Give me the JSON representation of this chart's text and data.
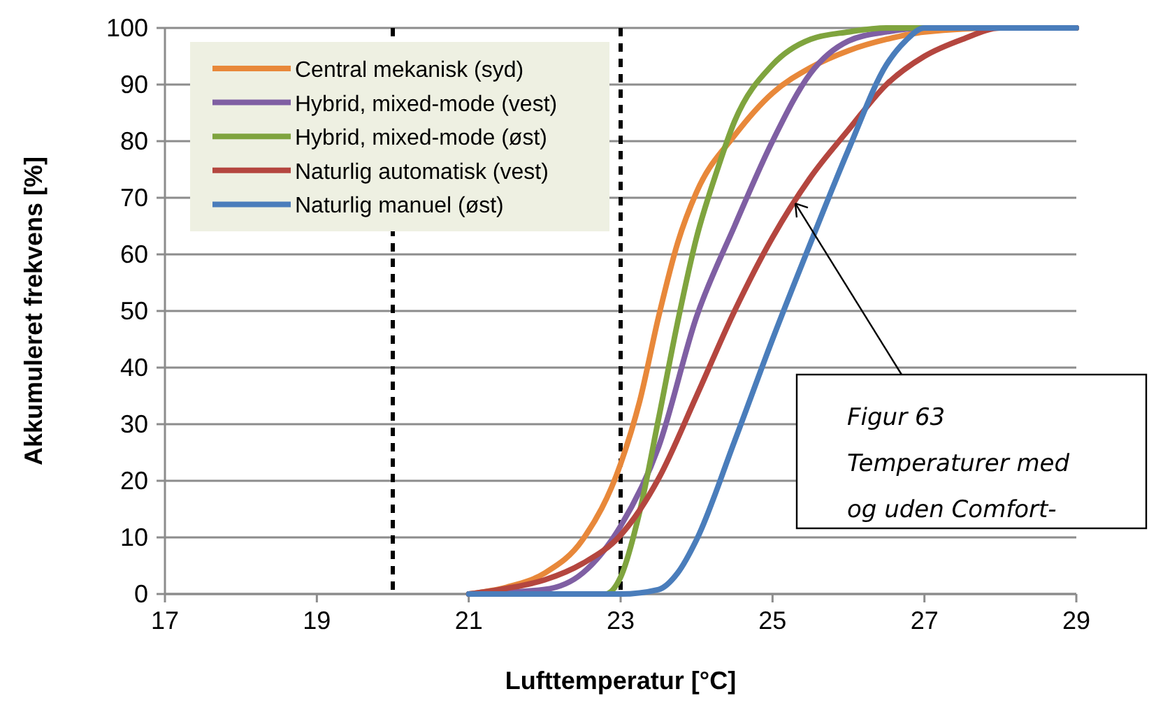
{
  "chart_data": {
    "type": "line",
    "xlabel": "Lufttemperatur [°C]",
    "ylabel": "Akkumuleret frekvens [%]",
    "xlim": [
      17,
      29
    ],
    "xticks": [
      17,
      19,
      21,
      23,
      25,
      27,
      29
    ],
    "ylim": [
      0,
      100
    ],
    "yticks": [
      0,
      10,
      20,
      30,
      40,
      50,
      60,
      70,
      80,
      90,
      100
    ],
    "grid": "y",
    "legend": "top left",
    "marker": "none",
    "line_style": "solid",
    "series": [
      {
        "name": "Central mekanisk (syd)",
        "color": "#e8883a",
        "x": [
          21,
          21.5,
          22,
          22.5,
          23,
          23.25,
          23.5,
          23.75,
          24,
          24.5,
          25,
          25.5,
          26,
          26.5,
          27,
          28,
          29
        ],
        "values": [
          0,
          1.2,
          3.7,
          9.6,
          23,
          34,
          49,
          62,
          71,
          81,
          88.5,
          93,
          96,
          98,
          99.3,
          100,
          100
        ]
      },
      {
        "name": "Hybrid, mixed-mode (vest)",
        "color": "#7f5fa3",
        "x": [
          21,
          22,
          22.5,
          23,
          23.5,
          24,
          24.5,
          25,
          25.5,
          26,
          26.5,
          27,
          29
        ],
        "values": [
          0,
          0.8,
          3.7,
          12,
          26,
          49,
          65,
          80,
          92,
          97.7,
          99.3,
          100,
          100
        ]
      },
      {
        "name": "Hybrid, mixed-mode (øst)",
        "color": "#7fa43e",
        "x": [
          21,
          22.8,
          23,
          23.25,
          23.5,
          23.75,
          24,
          24.25,
          24.5,
          25,
          25.5,
          26,
          26.5,
          29
        ],
        "values": [
          0,
          0,
          3,
          14.5,
          31,
          48,
          63,
          74,
          83.5,
          93.5,
          98,
          99.3,
          100,
          100
        ]
      },
      {
        "name": "Naturlig automatisk (vest)",
        "color": "#b4463f",
        "x": [
          21,
          21.5,
          22,
          22.5,
          23,
          23.5,
          24,
          24.5,
          25,
          25.5,
          26,
          26.5,
          27,
          27.5,
          28,
          29
        ],
        "values": [
          0,
          1,
          2.5,
          5.4,
          10.4,
          20.4,
          35,
          50,
          63,
          73.6,
          82,
          90,
          95,
          98,
          100,
          100
        ]
      },
      {
        "name": "Naturlig manuel (øst)",
        "color": "#4a7dbb",
        "x": [
          21,
          23,
          23.5,
          23.75,
          24,
          24.5,
          25,
          25.5,
          26,
          26.5,
          26.75,
          27,
          29
        ],
        "values": [
          0,
          0,
          0.8,
          3.7,
          9.6,
          27,
          45,
          62,
          78.5,
          93.5,
          97.7,
          100,
          100
        ]
      }
    ],
    "ref_lines": [
      {
        "axis": "x",
        "value": 20,
        "color": "#000000",
        "line_style": "dashed"
      },
      {
        "axis": "x",
        "value": 23,
        "color": "#000000",
        "line_style": "dashed"
      }
    ],
    "annotations": [
      {
        "text": "Figur 63\nTemperaturer med\nog uden Comfort-",
        "x": 25.3,
        "y": 69
      }
    ]
  }
}
